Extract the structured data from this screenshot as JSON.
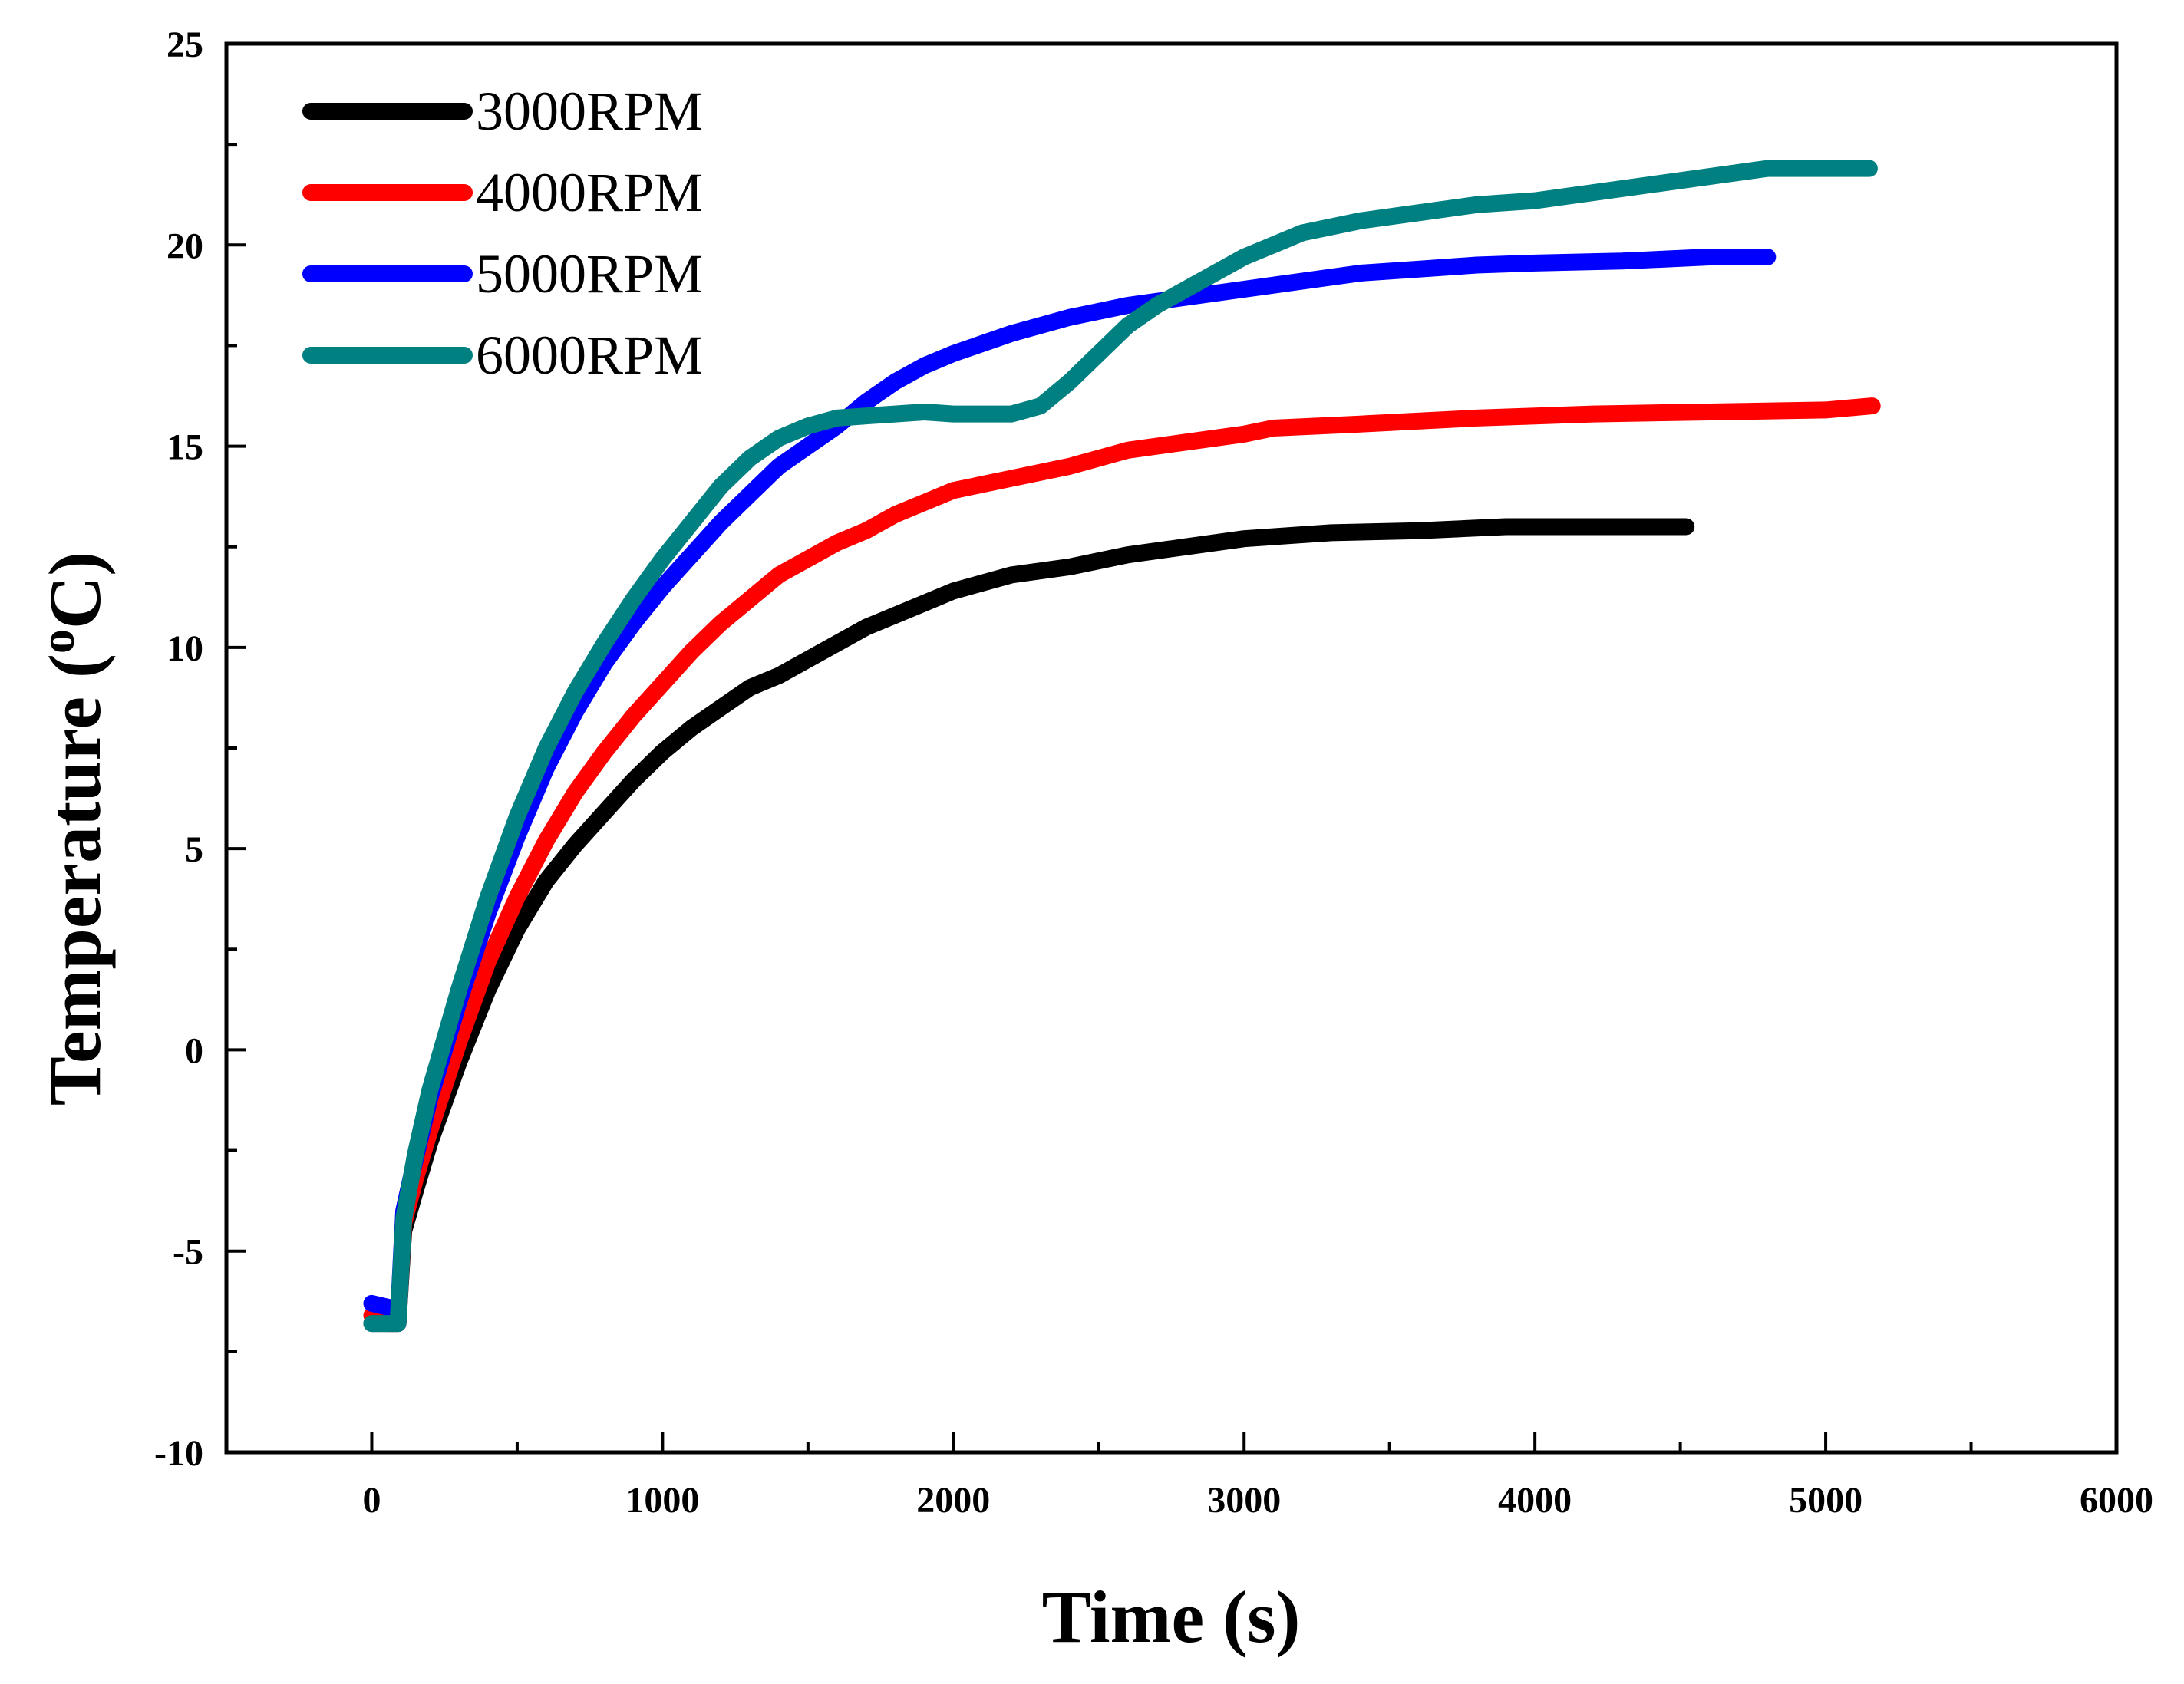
{
  "chart_data": {
    "type": "line",
    "title": "",
    "xlabel": "Time (s)",
    "ylabel_prefix": "Temperature (",
    "ylabel_sup": "o",
    "ylabel_suffix": "C)",
    "xlim": [
      -500,
      6000
    ],
    "ylim": [
      -10,
      25
    ],
    "xticks": [
      0,
      1000,
      2000,
      3000,
      4000,
      5000,
      6000
    ],
    "yticks": [
      -10,
      -5,
      0,
      5,
      10,
      15,
      20,
      25
    ],
    "xtick_labels": [
      "0",
      "1000",
      "2000",
      "3000",
      "4000",
      "5000",
      "6000"
    ],
    "ytick_labels": [
      "-10",
      "-5",
      "0",
      "5",
      "10",
      "15",
      "20",
      "25"
    ],
    "legend_position": "top-left",
    "series": [
      {
        "name": "3000RPM",
        "color": "#000000",
        "points": [
          [
            0,
            -6.8
          ],
          [
            60,
            -6.8
          ],
          [
            90,
            -6.8
          ],
          [
            110,
            -4.5
          ],
          [
            150,
            -3.5
          ],
          [
            200,
            -2.3
          ],
          [
            300,
            -0.3
          ],
          [
            400,
            1.5
          ],
          [
            500,
            3.0
          ],
          [
            600,
            4.2
          ],
          [
            700,
            5.1
          ],
          [
            800,
            5.9
          ],
          [
            900,
            6.7
          ],
          [
            1000,
            7.4
          ],
          [
            1100,
            8.0
          ],
          [
            1200,
            8.5
          ],
          [
            1300,
            9.0
          ],
          [
            1400,
            9.3
          ],
          [
            1500,
            9.7
          ],
          [
            1600,
            10.1
          ],
          [
            1700,
            10.5
          ],
          [
            1800,
            10.8
          ],
          [
            1900,
            11.1
          ],
          [
            2000,
            11.4
          ],
          [
            2200,
            11.8
          ],
          [
            2400,
            12.0
          ],
          [
            2600,
            12.3
          ],
          [
            2800,
            12.5
          ],
          [
            3000,
            12.7
          ],
          [
            3300,
            12.85
          ],
          [
            3600,
            12.9
          ],
          [
            3900,
            13.0
          ],
          [
            4200,
            13.0
          ],
          [
            4520,
            13.0
          ]
        ]
      },
      {
        "name": "4000RPM",
        "color": "#ff0000",
        "points": [
          [
            0,
            -6.6
          ],
          [
            60,
            -6.8
          ],
          [
            90,
            -6.8
          ],
          [
            110,
            -4.3
          ],
          [
            150,
            -3.2
          ],
          [
            200,
            -2.0
          ],
          [
            300,
            0.2
          ],
          [
            400,
            2.2
          ],
          [
            500,
            3.8
          ],
          [
            600,
            5.2
          ],
          [
            700,
            6.4
          ],
          [
            800,
            7.4
          ],
          [
            900,
            8.3
          ],
          [
            1000,
            9.1
          ],
          [
            1100,
            9.9
          ],
          [
            1200,
            10.6
          ],
          [
            1300,
            11.2
          ],
          [
            1400,
            11.8
          ],
          [
            1500,
            12.2
          ],
          [
            1600,
            12.6
          ],
          [
            1700,
            12.9
          ],
          [
            1800,
            13.3
          ],
          [
            1900,
            13.6
          ],
          [
            2000,
            13.9
          ],
          [
            2200,
            14.2
          ],
          [
            2400,
            14.5
          ],
          [
            2600,
            14.9
          ],
          [
            2800,
            15.1
          ],
          [
            3000,
            15.3
          ],
          [
            3100,
            15.45
          ],
          [
            3400,
            15.55
          ],
          [
            3800,
            15.7
          ],
          [
            4200,
            15.8
          ],
          [
            4600,
            15.85
          ],
          [
            5000,
            15.9
          ],
          [
            5160,
            16.0
          ]
        ]
      },
      {
        "name": "5000RPM",
        "color": "#0000ff",
        "points": [
          [
            0,
            -6.3
          ],
          [
            60,
            -6.4
          ],
          [
            90,
            -6.8
          ],
          [
            110,
            -4.0
          ],
          [
            150,
            -2.7
          ],
          [
            200,
            -1.2
          ],
          [
            300,
            1.2
          ],
          [
            400,
            3.4
          ],
          [
            500,
            5.3
          ],
          [
            600,
            7.0
          ],
          [
            700,
            8.4
          ],
          [
            800,
            9.6
          ],
          [
            900,
            10.6
          ],
          [
            1000,
            11.5
          ],
          [
            1100,
            12.3
          ],
          [
            1200,
            13.1
          ],
          [
            1300,
            13.8
          ],
          [
            1400,
            14.5
          ],
          [
            1500,
            15.0
          ],
          [
            1600,
            15.5
          ],
          [
            1700,
            16.1
          ],
          [
            1800,
            16.6
          ],
          [
            1900,
            17.0
          ],
          [
            2000,
            17.3
          ],
          [
            2200,
            17.8
          ],
          [
            2400,
            18.2
          ],
          [
            2600,
            18.5
          ],
          [
            2800,
            18.7
          ],
          [
            3000,
            18.9
          ],
          [
            3200,
            19.1
          ],
          [
            3400,
            19.3
          ],
          [
            3600,
            19.4
          ],
          [
            3800,
            19.5
          ],
          [
            4000,
            19.55
          ],
          [
            4300,
            19.6
          ],
          [
            4600,
            19.7
          ],
          [
            4800,
            19.7
          ]
        ]
      },
      {
        "name": "6000RPM",
        "color": "#008080",
        "points": [
          [
            0,
            -6.8
          ],
          [
            60,
            -6.8
          ],
          [
            90,
            -6.8
          ],
          [
            110,
            -4.2
          ],
          [
            150,
            -2.6
          ],
          [
            200,
            -1.0
          ],
          [
            300,
            1.5
          ],
          [
            400,
            3.8
          ],
          [
            500,
            5.8
          ],
          [
            600,
            7.5
          ],
          [
            700,
            8.9
          ],
          [
            800,
            10.1
          ],
          [
            900,
            11.2
          ],
          [
            1000,
            12.2
          ],
          [
            1100,
            13.1
          ],
          [
            1200,
            14.0
          ],
          [
            1300,
            14.7
          ],
          [
            1400,
            15.2
          ],
          [
            1500,
            15.5
          ],
          [
            1600,
            15.7
          ],
          [
            1700,
            15.75
          ],
          [
            1800,
            15.8
          ],
          [
            1900,
            15.85
          ],
          [
            2000,
            15.8
          ],
          [
            2100,
            15.8
          ],
          [
            2200,
            15.8
          ],
          [
            2300,
            16.0
          ],
          [
            2400,
            16.6
          ],
          [
            2500,
            17.3
          ],
          [
            2600,
            18.0
          ],
          [
            2700,
            18.5
          ],
          [
            2800,
            18.9
          ],
          [
            2900,
            19.3
          ],
          [
            3000,
            19.7
          ],
          [
            3100,
            20.0
          ],
          [
            3200,
            20.3
          ],
          [
            3400,
            20.6
          ],
          [
            3600,
            20.8
          ],
          [
            3800,
            21.0
          ],
          [
            4000,
            21.1
          ],
          [
            4200,
            21.3
          ],
          [
            4400,
            21.5
          ],
          [
            4600,
            21.7
          ],
          [
            4800,
            21.9
          ],
          [
            5000,
            21.9
          ],
          [
            5150,
            21.9
          ]
        ]
      }
    ]
  }
}
